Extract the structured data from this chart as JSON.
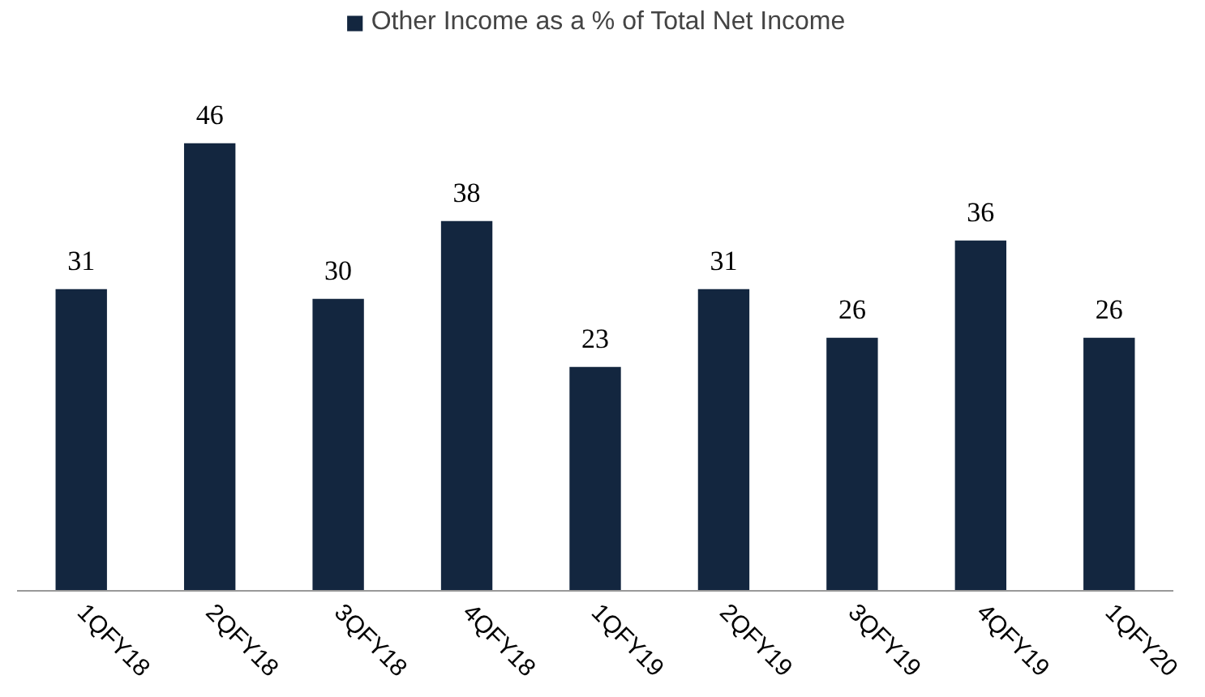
{
  "chart_data": {
    "type": "bar",
    "categories": [
      "1QFY18",
      "2QFY18",
      "3QFY18",
      "4QFY18",
      "1QFY19",
      "2QFY19",
      "3QFY19",
      "4QFY19",
      "1QFY20"
    ],
    "series": [
      {
        "name": "Other Income as a % of Total Net Income",
        "color": "#13263f",
        "values": [
          31,
          46,
          30,
          38,
          23,
          31,
          26,
          36,
          26
        ]
      }
    ],
    "data_labels": true,
    "legend": "top",
    "grid": false
  }
}
